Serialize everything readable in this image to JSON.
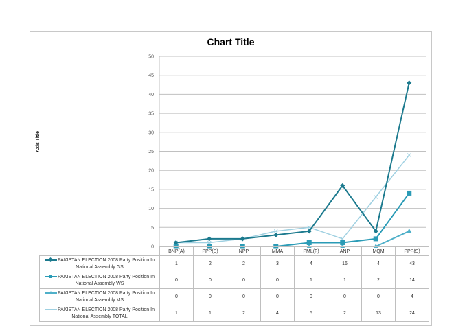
{
  "chart": {
    "title": "Chart Title",
    "axis_title": "Axis Title",
    "y_ticks": [
      "0",
      "5",
      "10",
      "15",
      "20",
      "25",
      "30",
      "35",
      "40",
      "45",
      "50"
    ]
  },
  "table": {
    "headers": [
      "BNP(A)",
      "PPP(S)",
      "NPP",
      "MMA",
      "PML(F)",
      "ANP",
      "MQM",
      "PPP(S)"
    ],
    "rows": [
      {
        "label_l1": "PAKISTAN ELECTION 2008  Party Position In",
        "label_l2": "National Assembly GS",
        "values": [
          "1",
          "2",
          "2",
          "3",
          "4",
          "16",
          "4",
          "43"
        ]
      },
      {
        "label_l1": "PAKISTAN ELECTION 2008  Party Position In",
        "label_l2": "National Assembly WS",
        "values": [
          "0",
          "0",
          "0",
          "0",
          "1",
          "1",
          "2",
          "14"
        ]
      },
      {
        "label_l1": "PAKISTAN ELECTION 2008  Party Position In",
        "label_l2": "National Assembly MS",
        "values": [
          "0",
          "0",
          "0",
          "0",
          "0",
          "0",
          "0",
          "4"
        ]
      },
      {
        "label_l1": "PAKISTAN ELECTION 2008  Party Position In",
        "label_l2": "National Assembly TOTAL",
        "values": [
          "1",
          "1",
          "2",
          "4",
          "5",
          "2",
          "13",
          "24"
        ]
      }
    ]
  },
  "colors": {
    "gs": "#1c7a8e",
    "ws": "#2a9bb6",
    "ms": "#4fb0c9",
    "total": "#9fd0e1",
    "grid": "#c0c0c0"
  },
  "chart_data": {
    "type": "line",
    "title": "Chart Title",
    "xlabel": "",
    "ylabel": "Axis Title",
    "ylim": [
      0,
      50
    ],
    "grid": true,
    "legend_position": "data-table",
    "categories": [
      "BNP(A)",
      "PPP(S)",
      "NPP",
      "MMA",
      "PML(F)",
      "ANP",
      "MQM",
      "PPP(S)"
    ],
    "series": [
      {
        "name": "PAKISTAN ELECTION 2008  Party Position In National Assembly GS",
        "marker": "diamond",
        "values": [
          1,
          2,
          2,
          3,
          4,
          16,
          4,
          43
        ]
      },
      {
        "name": "PAKISTAN ELECTION 2008  Party Position In National Assembly WS",
        "marker": "square",
        "values": [
          0,
          0,
          0,
          0,
          1,
          1,
          2,
          14
        ]
      },
      {
        "name": "PAKISTAN ELECTION 2008  Party Position In National Assembly MS",
        "marker": "triangle",
        "values": [
          0,
          0,
          0,
          0,
          0,
          0,
          0,
          4
        ]
      },
      {
        "name": "PAKISTAN ELECTION 2008  Party Position In National Assembly TOTAL",
        "marker": "x",
        "values": [
          1,
          1,
          2,
          4,
          5,
          2,
          13,
          24
        ]
      }
    ]
  }
}
